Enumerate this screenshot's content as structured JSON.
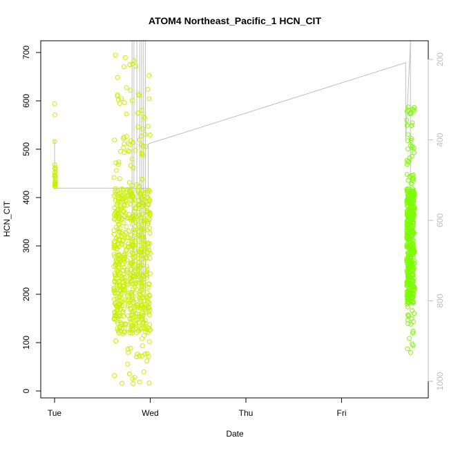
{
  "chart_data": {
    "type": "scatter",
    "title": "ATOM4 Northeast_Pacific_1 HCN_CIT",
    "xlabel": "Date",
    "ylabel": "HCN_CIT",
    "x_ticks": [
      "Tue",
      "Wed",
      "Thu",
      "Fri"
    ],
    "x_range_days": [
      0,
      3.8
    ],
    "ylim": [
      0,
      720
    ],
    "y_ticks": [
      0,
      100,
      200,
      300,
      400,
      500,
      600,
      700
    ],
    "y2_ticks": [
      200,
      400,
      600,
      800,
      1000
    ],
    "y2lim": [
      1010,
      180
    ],
    "colors": {
      "early": "#c8f000",
      "late": "#7cfc00",
      "line": "#bebebe",
      "axis": "#000000",
      "right_axis": "#bebebe"
    },
    "clusters": [
      {
        "name": "",
        "x": [
          0.0,
          0.01
        ],
        "y": [
          [
            395,
            600
          ],
          [
            420,
            470
          ]
        ]
      },
      {
        "name": "",
        "x": [
          0.62,
          1.0
        ],
        "y": [
          [
            15,
            700
          ],
          [
            120,
            420
          ]
        ]
      },
      {
        "name": "",
        "x": [
          3.68,
          3.76
        ],
        "y": [
          [
            75,
            590
          ],
          [
            180,
            420
          ]
        ]
      }
    ],
    "line_y2": [
      [
        0.0,
        400
      ],
      [
        0.0,
        520
      ],
      [
        0.98,
        520
      ],
      [
        0.98,
        410
      ],
      [
        3.67,
        208
      ],
      [
        3.67,
        400
      ],
      [
        3.72,
        160
      ]
    ]
  }
}
